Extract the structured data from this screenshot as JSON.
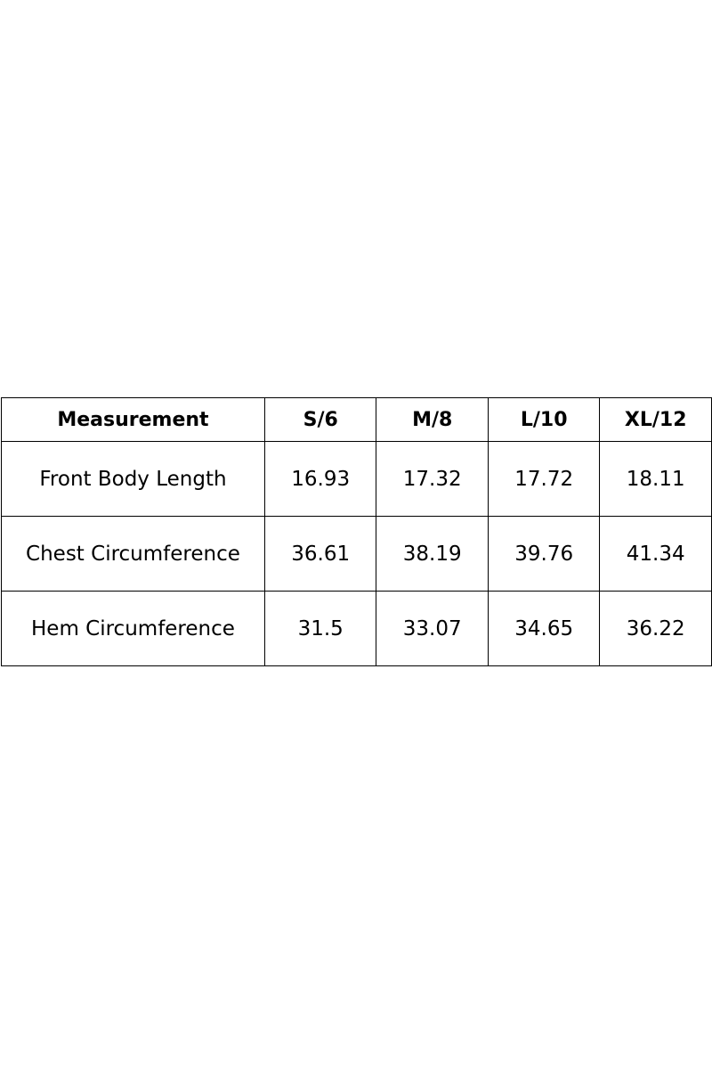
{
  "table": {
    "header": [
      "Measurement",
      "S/6",
      "M/8",
      "L/10",
      "XL/12"
    ],
    "rows": [
      [
        "Front Body Length",
        "16.93",
        "17.32",
        "17.72",
        "18.11"
      ],
      [
        "Chest Circumference",
        "36.61",
        "38.19",
        "39.76",
        "41.34"
      ],
      [
        "Hem Circumference",
        "31.5",
        "33.07",
        "34.65",
        "36.22"
      ]
    ]
  }
}
